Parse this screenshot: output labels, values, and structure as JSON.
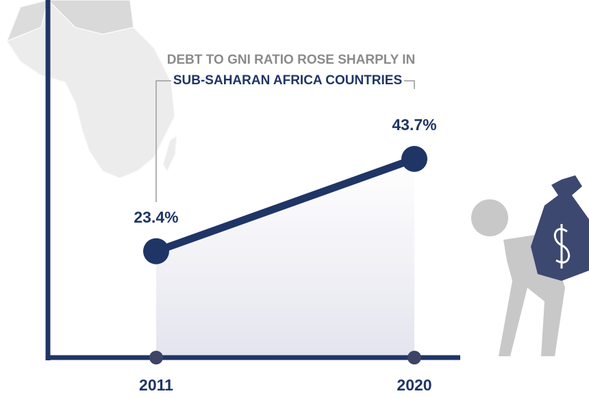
{
  "chart_data": {
    "type": "line",
    "title": "DEBT TO GNI RATIO ROSE SHARPLY IN",
    "subtitle": "SUB-SAHARAN AFRICA COUNTRIES",
    "categories": [
      "2011",
      "2020"
    ],
    "values": [
      23.4,
      43.7
    ],
    "value_labels": [
      "23.4%",
      "43.7%"
    ],
    "color": "#1f3566"
  }
}
